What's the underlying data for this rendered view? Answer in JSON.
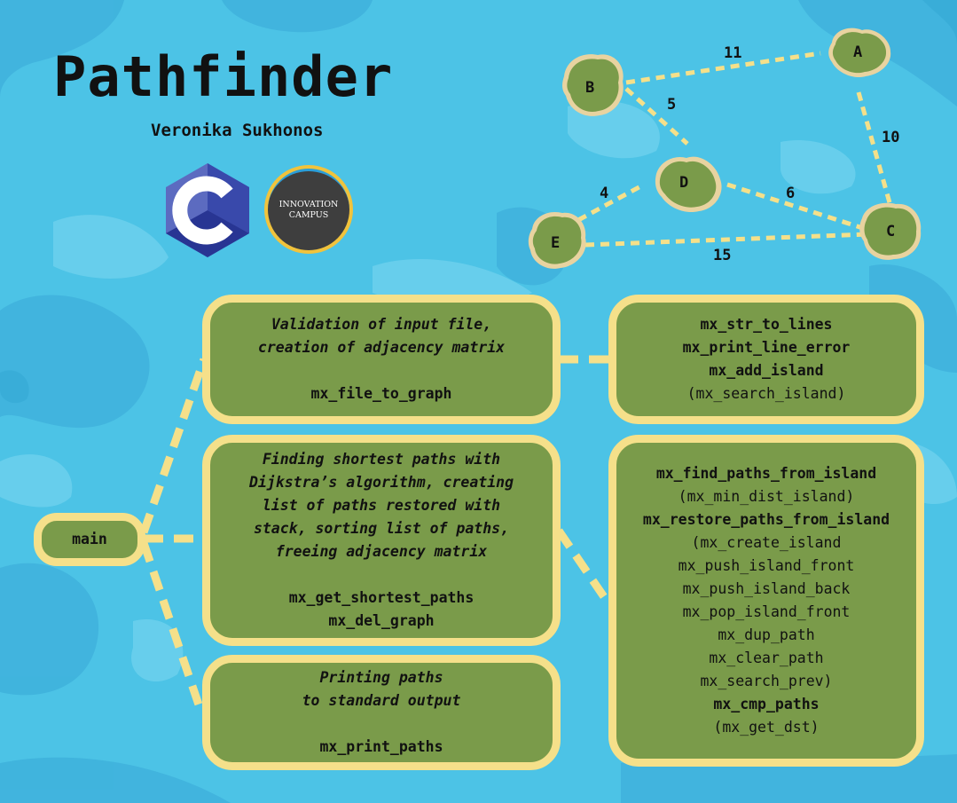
{
  "title": "Pathfinder",
  "author": "Veronika Sukhonos",
  "logos": [
    {
      "name": "c-language-logo",
      "icon": "c-letter-hexagon"
    },
    {
      "name": "innovation-campus-logo",
      "text_line1": "INNOVATION",
      "text_line2": "CAMPUS"
    }
  ],
  "graph": {
    "islands": [
      {
        "id": "A",
        "label": "A"
      },
      {
        "id": "B",
        "label": "B"
      },
      {
        "id": "C",
        "label": "C"
      },
      {
        "id": "D",
        "label": "D"
      },
      {
        "id": "E",
        "label": "E"
      }
    ],
    "edges": [
      {
        "from": "B",
        "to": "A",
        "weight": "11"
      },
      {
        "from": "B",
        "to": "D",
        "weight": "5"
      },
      {
        "from": "A",
        "to": "C",
        "weight": "10"
      },
      {
        "from": "E",
        "to": "D",
        "weight": "4"
      },
      {
        "from": "D",
        "to": "C",
        "weight": "6"
      },
      {
        "from": "E",
        "to": "C",
        "weight": "15"
      }
    ]
  },
  "main": {
    "label": "main"
  },
  "steps": [
    {
      "description": [
        "Validation of input file,",
        "creation of adjacency matrix"
      ],
      "functions": [
        "mx_file_to_graph"
      ]
    },
    {
      "description": [
        "Finding shortest paths with",
        "Dijkstra’s algorithm, creating",
        "list of paths restored with",
        "stack, sorting list of paths,",
        "freeing adjacency matrix"
      ],
      "functions": [
        "mx_get_shortest_paths",
        "mx_del_graph"
      ]
    },
    {
      "description": [
        "Printing paths",
        "to standard output"
      ],
      "functions": [
        "mx_print_paths"
      ]
    }
  ],
  "helpers": [
    {
      "lines": [
        {
          "text": "mx_str_to_lines",
          "bold": true
        },
        {
          "text": "mx_print_line_error",
          "bold": true
        },
        {
          "text": "mx_add_island",
          "bold": true
        },
        {
          "text": "(mx_search_island)",
          "bold": false
        }
      ]
    },
    {
      "lines": [
        {
          "text": "mx_find_paths_from_island",
          "bold": true
        },
        {
          "text": "(mx_min_dist_island)",
          "bold": false
        },
        {
          "text": "mx_restore_paths_from_island",
          "bold": true
        },
        {
          "text": "(mx_create_island",
          "bold": false
        },
        {
          "text": "mx_push_island_front",
          "bold": false
        },
        {
          "text": "mx_push_island_back",
          "bold": false
        },
        {
          "text": "mx_pop_island_front",
          "bold": false
        },
        {
          "text": "mx_dup_path",
          "bold": false
        },
        {
          "text": "mx_clear_path",
          "bold": false
        },
        {
          "text": "mx_search_prev)",
          "bold": false
        },
        {
          "text": "mx_cmp_paths",
          "bold": true
        },
        {
          "text": "(mx_get_dst)",
          "bold": false
        }
      ]
    }
  ],
  "colors": {
    "water": "#4cc3e6",
    "water_light": "#7ad6f0",
    "water_dark": "#2fa6cf",
    "box_fill": "#7a9b4a",
    "box_border": "#f5e08a",
    "island_green": "#7a9b4a",
    "island_sand": "#e8d3a0",
    "c_logo": "#5c6bc0"
  }
}
